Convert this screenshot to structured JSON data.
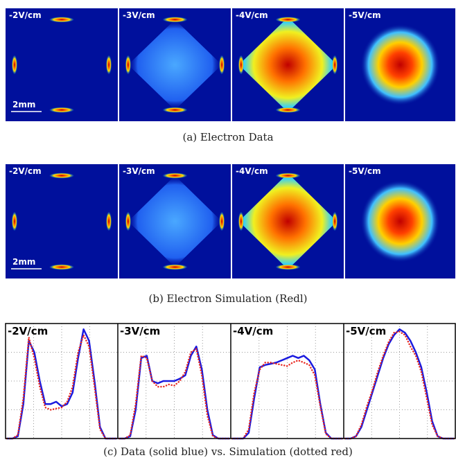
{
  "figure_a": {
    "labels": [
      "-2V/cm",
      "-3V/cm",
      "-4V/cm",
      "-5V/cm"
    ],
    "scale": "2mm",
    "caption": "(a) Electron Data"
  },
  "figure_b": {
    "labels": [
      "-2V/cm",
      "-3V/cm",
      "-4V/cm",
      "-5V/cm"
    ],
    "scale": "2mm",
    "caption": "(b) Electron Simulation (Redl)"
  },
  "chart_data": {
    "type": "line",
    "caption": "(c) Data (solid blue) vs. Simulation (dotted red)",
    "ylim": [
      0,
      1
    ],
    "grid": true,
    "panels": [
      {
        "label": "-2V/cm",
        "series": [
          {
            "color": "#1a1adf",
            "style": "solid",
            "values": [
              0,
              0,
              0.02,
              0.3,
              0.85,
              0.75,
              0.5,
              0.3,
              0.3,
              0.32,
              0.28,
              0.3,
              0.4,
              0.7,
              0.95,
              0.85,
              0.5,
              0.1,
              0,
              0,
              0
            ]
          },
          {
            "color": "#e8261f",
            "style": "dotted",
            "values": [
              0,
              0,
              0.03,
              0.35,
              0.88,
              0.7,
              0.45,
              0.27,
              0.25,
              0.26,
              0.27,
              0.32,
              0.45,
              0.75,
              0.9,
              0.8,
              0.45,
              0.08,
              0,
              0,
              0
            ]
          }
        ]
      },
      {
        "label": "-3V/cm",
        "series": [
          {
            "color": "#1a1adf",
            "style": "solid",
            "values": [
              0,
              0,
              0.02,
              0.25,
              0.7,
              0.72,
              0.5,
              0.48,
              0.5,
              0.5,
              0.5,
              0.52,
              0.55,
              0.72,
              0.8,
              0.6,
              0.25,
              0.03,
              0,
              0,
              0
            ]
          },
          {
            "color": "#e8261f",
            "style": "dotted",
            "values": [
              0,
              0,
              0.03,
              0.3,
              0.72,
              0.7,
              0.5,
              0.45,
              0.45,
              0.47,
              0.46,
              0.5,
              0.58,
              0.75,
              0.78,
              0.55,
              0.2,
              0.02,
              0,
              0,
              0
            ]
          }
        ]
      },
      {
        "label": "-4V/cm",
        "series": [
          {
            "color": "#1a1adf",
            "style": "solid",
            "values": [
              0,
              0,
              0,
              0.05,
              0.35,
              0.62,
              0.64,
              0.65,
              0.66,
              0.68,
              0.7,
              0.72,
              0.7,
              0.72,
              0.68,
              0.6,
              0.3,
              0.05,
              0,
              0,
              0
            ]
          },
          {
            "color": "#e8261f",
            "style": "dotted",
            "values": [
              0,
              0,
              0,
              0.08,
              0.4,
              0.6,
              0.66,
              0.66,
              0.65,
              0.64,
              0.63,
              0.66,
              0.68,
              0.66,
              0.64,
              0.55,
              0.28,
              0.04,
              0,
              0,
              0
            ]
          }
        ]
      },
      {
        "label": "-5V/cm",
        "series": [
          {
            "color": "#1a1adf",
            "style": "solid",
            "values": [
              0,
              0,
              0.02,
              0.1,
              0.25,
              0.4,
              0.55,
              0.7,
              0.82,
              0.9,
              0.95,
              0.92,
              0.85,
              0.75,
              0.62,
              0.4,
              0.15,
              0.02,
              0,
              0,
              0
            ]
          },
          {
            "color": "#e8261f",
            "style": "dotted",
            "values": [
              0,
              0,
              0.02,
              0.12,
              0.28,
              0.42,
              0.58,
              0.72,
              0.84,
              0.92,
              0.93,
              0.9,
              0.8,
              0.72,
              0.58,
              0.35,
              0.12,
              0.02,
              0,
              0,
              0
            ]
          }
        ]
      }
    ]
  }
}
